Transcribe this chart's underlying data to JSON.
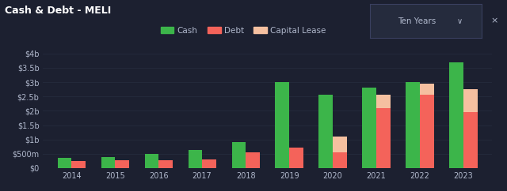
{
  "title": "Cash & Debt - MELI",
  "background_color": "#1c2030",
  "plot_bg_color": "#1c2030",
  "years": [
    "2014",
    "2015",
    "2016",
    "2017",
    "2018",
    "2019",
    "2020",
    "2021",
    "2022",
    "2023"
  ],
  "cash": [
    0.35,
    0.38,
    0.5,
    0.62,
    0.9,
    3.0,
    2.55,
    2.8,
    3.0,
    3.7
  ],
  "debt": [
    0.25,
    0.27,
    0.28,
    0.3,
    0.55,
    0.72,
    0.55,
    2.1,
    2.55,
    1.95
  ],
  "capital_lease": [
    0.0,
    0.0,
    0.0,
    0.0,
    0.0,
    0.0,
    0.55,
    0.45,
    0.4,
    0.8
  ],
  "cash_color": "#3cb54a",
  "debt_color": "#f4635a",
  "capital_lease_color": "#f5c0a0",
  "ylim": [
    0,
    4.0
  ],
  "yticks": [
    0,
    0.5,
    1.0,
    1.5,
    2.0,
    2.5,
    3.0,
    3.5,
    4.0
  ],
  "ytick_labels": [
    "$0",
    "$500m",
    "$1b",
    "$1.5b",
    "$2b",
    "$2.5b",
    "$3b",
    "$3.5b",
    "$4b"
  ],
  "legend_labels": [
    "Cash",
    "Debt",
    "Capital Lease"
  ],
  "bar_width": 0.32,
  "text_color": "#b0b8cc",
  "title_color": "#ffffff",
  "grid_color": "#252b3d",
  "tenyears_bg": "#252b3d",
  "tenyears_border": "#3a4060"
}
